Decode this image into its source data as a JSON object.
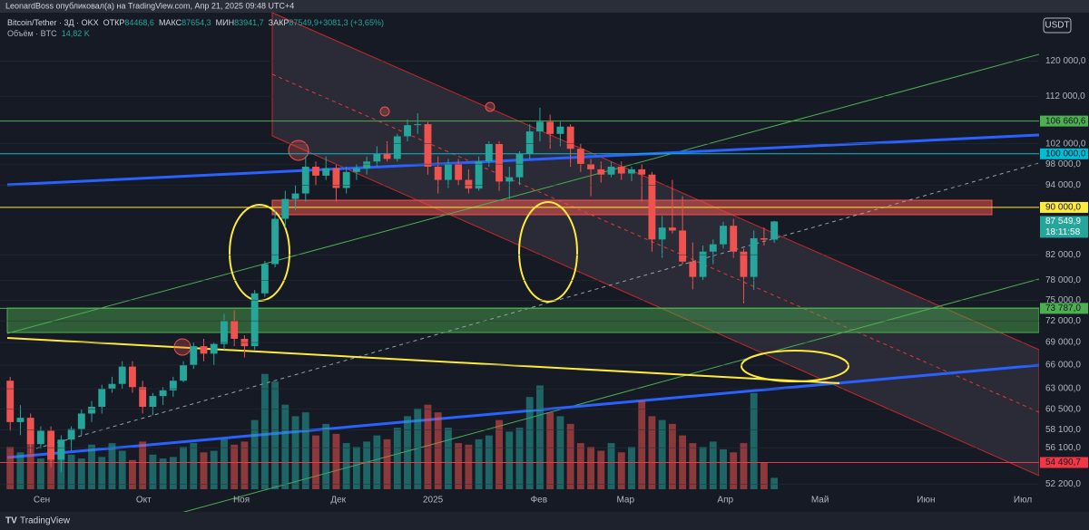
{
  "header": {
    "publisher": "LeonardBoss опубликовал(а) на TradingView.com, Апр 21, 2025 09:48 UTC+4"
  },
  "chart_data": {
    "type": "candlestick",
    "symbol": "Bitcoin/Tether · 3Д · OKX",
    "ohlc_legend": [
      {
        "label": "ОТКР",
        "text": "84468,6"
      },
      {
        "label": "МАКС",
        "text": "87654,3"
      },
      {
        "label": "МИН",
        "text": "83941,7"
      },
      {
        "label": "ЗАКР",
        "text": "87549,9"
      },
      {
        "label": "",
        "text": "+3081,3 (+3,65%)"
      }
    ],
    "volume_label": "Объём · BTC",
    "volume_text": "14,82 K",
    "currency": "USDT",
    "up_color": "#26a69a",
    "down_color": "#ef5350",
    "log_scale": true,
    "xlim": [
      -1,
      101
    ],
    "xticks": [
      {
        "value": 3.1,
        "label": "Сен"
      },
      {
        "value": 13.1,
        "label": "Окт"
      },
      {
        "value": 22.7,
        "label": "Ноя"
      },
      {
        "value": 32.2,
        "label": "Дек"
      },
      {
        "value": 41.5,
        "label": "2025"
      },
      {
        "value": 51.9,
        "label": "Фев"
      },
      {
        "value": 60.4,
        "label": "Мар"
      },
      {
        "value": 70.2,
        "label": "Апр"
      },
      {
        "value": 79.5,
        "label": "Май"
      },
      {
        "value": 89.9,
        "label": "Июн"
      },
      {
        "value": 99.4,
        "label": "Июл"
      }
    ],
    "ylim": [
      51700,
      132000
    ],
    "yticks": [
      {
        "value": 120000,
        "label": "120 000,0"
      },
      {
        "value": 112000,
        "label": "112 000,0"
      },
      {
        "value": 102000,
        "label": "102 000,0"
      },
      {
        "value": 98000,
        "label": "98 000,0"
      },
      {
        "value": 94000,
        "label": "94 000,0"
      },
      {
        "value": 82000,
        "label": "82 000,0"
      },
      {
        "value": 78000,
        "label": "78 000,0"
      },
      {
        "value": 75000,
        "label": "75 000,0"
      },
      {
        "value": 72000,
        "label": "72 000,0"
      },
      {
        "value": 69000,
        "label": "69 000,0"
      },
      {
        "value": 66000,
        "label": "66 000,0"
      },
      {
        "value": 63000,
        "label": "63 000,0"
      },
      {
        "value": 60500,
        "label": "60 500,0"
      },
      {
        "value": 58100,
        "label": "58 100,0"
      },
      {
        "value": 56100,
        "label": "56 100,0"
      },
      {
        "value": 52200,
        "label": "52 200,0"
      }
    ],
    "levels": [
      {
        "value": 106660.6,
        "label": "106 660,6",
        "color": "#4caf50"
      },
      {
        "value": 100000,
        "label": "100 000,0",
        "color": "#00bcd4"
      },
      {
        "value": 90000,
        "label": "90 000,0",
        "color": "#ffeb3b"
      },
      {
        "value": 73787,
        "label": "73 787,0",
        "color": "#4caf50"
      },
      {
        "value": 54490.7,
        "label": "54 490,7",
        "color": "#f23645"
      }
    ],
    "last_price": {
      "value": 87549.9,
      "label": "87 549,9",
      "countdown": "18:11:58",
      "color": "#26a69a"
    },
    "volume_lim": [
      0,
      620
    ],
    "candles": [
      [
        64000,
        64500,
        58000,
        59000
      ],
      [
        59000,
        61000,
        57500,
        59500
      ],
      [
        59500,
        60000,
        55500,
        56500
      ],
      [
        56500,
        58500,
        56000,
        58000
      ],
      [
        58000,
        58500,
        54000,
        54800
      ],
      [
        54800,
        57500,
        53500,
        57000
      ],
      [
        57000,
        58500,
        55800,
        58200
      ],
      [
        58200,
        60500,
        57500,
        60000
      ],
      [
        60000,
        61500,
        59000,
        60800
      ],
      [
        60800,
        63500,
        60000,
        63000
      ],
      [
        63000,
        64500,
        62500,
        63600
      ],
      [
        63600,
        66500,
        63000,
        65800
      ],
      [
        65800,
        66500,
        62500,
        63200
      ],
      [
        63200,
        64000,
        60000,
        60800
      ],
      [
        60800,
        62500,
        59800,
        62100
      ],
      [
        62100,
        63200,
        61000,
        62800
      ],
      [
        62800,
        64500,
        62000,
        64000
      ],
      [
        64000,
        66500,
        63800,
        66000
      ],
      [
        66000,
        69000,
        65500,
        68500
      ],
      [
        68500,
        69500,
        66500,
        67500
      ],
      [
        67500,
        69000,
        66000,
        68800
      ],
      [
        68800,
        73000,
        68000,
        72000
      ],
      [
        72000,
        73500,
        68500,
        69500
      ],
      [
        69500,
        70000,
        67000,
        68500
      ],
      [
        68500,
        76500,
        68000,
        76000
      ],
      [
        76000,
        81000,
        75500,
        80500
      ],
      [
        80500,
        89500,
        80000,
        88000
      ],
      [
        88000,
        93000,
        86500,
        91500
      ],
      [
        91500,
        94000,
        89500,
        92500
      ],
      [
        92500,
        99500,
        91000,
        97500
      ],
      [
        97500,
        98500,
        94000,
        95800
      ],
      [
        95800,
        99500,
        95000,
        97200
      ],
      [
        97200,
        98000,
        91000,
        93500
      ],
      [
        93500,
        97500,
        92500,
        96500
      ],
      [
        96500,
        98000,
        95000,
        97200
      ],
      [
        97200,
        99500,
        96000,
        98500
      ],
      [
        98500,
        101500,
        97500,
        100000
      ],
      [
        100000,
        102500,
        98500,
        99000
      ],
      [
        99000,
        104000,
        98500,
        103500
      ],
      [
        103500,
        107000,
        102500,
        105800
      ],
      [
        105800,
        108300,
        104000,
        106000
      ],
      [
        106000,
        106500,
        96000,
        97500
      ],
      [
        97500,
        99500,
        92500,
        95000
      ],
      [
        95000,
        99000,
        93500,
        98000
      ],
      [
        98000,
        99000,
        94000,
        95000
      ],
      [
        95000,
        97000,
        92500,
        93400
      ],
      [
        93400,
        99500,
        93000,
        98500
      ],
      [
        98500,
        102500,
        97500,
        102000
      ],
      [
        102000,
        102500,
        93000,
        94700
      ],
      [
        94700,
        97500,
        91500,
        95500
      ],
      [
        95500,
        100500,
        94000,
        100000
      ],
      [
        100000,
        106000,
        99000,
        104500
      ],
      [
        104500,
        109500,
        102500,
        106500
      ],
      [
        106500,
        108000,
        101000,
        104000
      ],
      [
        104000,
        106500,
        101500,
        105500
      ],
      [
        105500,
        106000,
        97500,
        101000
      ],
      [
        101000,
        102000,
        96500,
        98000
      ],
      [
        98000,
        99000,
        92000,
        97000
      ],
      [
        97000,
        98500,
        94500,
        96000
      ],
      [
        96000,
        98500,
        95500,
        97500
      ],
      [
        97500,
        98500,
        95000,
        96200
      ],
      [
        96200,
        97500,
        94800,
        97000
      ],
      [
        97000,
        98000,
        91000,
        96000
      ],
      [
        96000,
        96500,
        82500,
        84500
      ],
      [
        84500,
        88500,
        81500,
        86500
      ],
      [
        86500,
        95000,
        85500,
        86000
      ],
      [
        86000,
        92000,
        80500,
        80900
      ],
      [
        80900,
        84000,
        76600,
        78500
      ],
      [
        78500,
        83500,
        78000,
        82500
      ],
      [
        82500,
        84500,
        80500,
        83700
      ],
      [
        83700,
        87500,
        83000,
        86800
      ],
      [
        86800,
        88000,
        81500,
        82500
      ],
      [
        82500,
        83000,
        74500,
        78500
      ],
      [
        78500,
        86000,
        76500,
        84700
      ],
      [
        84700,
        86500,
        83500,
        84468.6
      ],
      [
        84468.6,
        87654.3,
        83941.7,
        87549.9
      ]
    ],
    "volumes": [
      55,
      48,
      62,
      40,
      70,
      52,
      45,
      40,
      58,
      42,
      60,
      50,
      38,
      62,
      45,
      40,
      42,
      55,
      60,
      48,
      50,
      65,
      58,
      62,
      90,
      150,
      140,
      110,
      95,
      100,
      70,
      85,
      72,
      60,
      55,
      62,
      70,
      65,
      80,
      95,
      105,
      110,
      100,
      80,
      60,
      58,
      65,
      70,
      90,
      75,
      80,
      120,
      135,
      100,
      95,
      85,
      60,
      55,
      50,
      60,
      48,
      55,
      115,
      95,
      90,
      85,
      70,
      60,
      55,
      62,
      52,
      48,
      60,
      125,
      35,
      14.82
    ]
  },
  "footer": {
    "brand": "TradingView"
  }
}
